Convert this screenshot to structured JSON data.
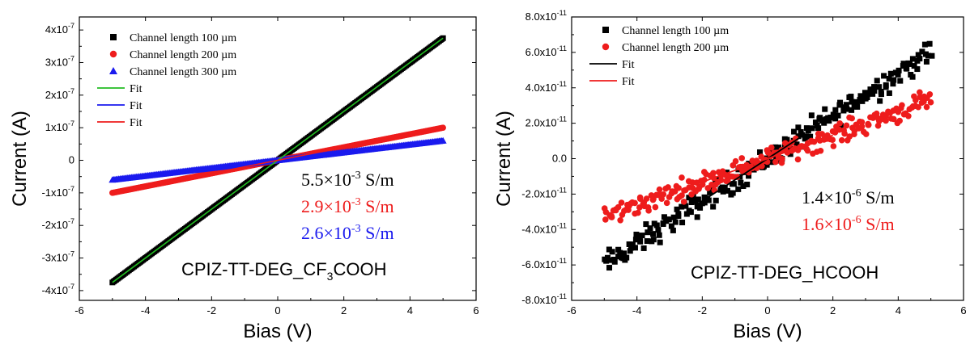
{
  "chart_data": [
    {
      "type": "scatter",
      "xlabel": "Bias (V)",
      "ylabel": "Current (A)",
      "xlim": [
        -6,
        6
      ],
      "ylim": [
        -4.3e-07,
        4.4e-07
      ],
      "x_ticks": [
        "-6",
        "-4",
        "-2",
        "0",
        "2",
        "4",
        "6"
      ],
      "y_ticks": [
        {
          "base": "-4x10",
          "exp": "-7",
          "value": -4e-07
        },
        {
          "base": "-3x10",
          "exp": "-7",
          "value": -3e-07
        },
        {
          "base": "-2x10",
          "exp": "-7",
          "value": -2e-07
        },
        {
          "base": "-1x10",
          "exp": "-7",
          "value": -1e-07
        },
        {
          "base": "0",
          "exp": "",
          "value": 0
        },
        {
          "base": "1x10",
          "exp": "-7",
          "value": 1e-07
        },
        {
          "base": "2x10",
          "exp": "-7",
          "value": 2e-07
        },
        {
          "base": "3x10",
          "exp": "-7",
          "value": 3e-07
        },
        {
          "base": "4x10",
          "exp": "-7",
          "value": 4e-07
        }
      ],
      "grid": false,
      "legend_position": "top-left",
      "series": [
        {
          "name": "Channel length 100 µm",
          "marker": "square",
          "color": "#000000",
          "x_range": [
            -5,
            5
          ],
          "slope": 7.5e-08
        },
        {
          "name": "Channel length 200 µm",
          "marker": "circle",
          "color": "#ee1c1c",
          "x_range": [
            -5,
            5
          ],
          "slope": 2e-08
        },
        {
          "name": "Channel length 300 µm",
          "marker": "triangle",
          "color": "#1a1aee",
          "x_range": [
            -5,
            5
          ],
          "slope": 1.2e-08
        }
      ],
      "fits": [
        {
          "name": "Fit",
          "color": "#22bb22",
          "slope": 7.5e-08
        },
        {
          "name": "Fit",
          "color": "#1a1aee",
          "slope": 1.2e-08
        },
        {
          "name": "Fit",
          "color": "#ee1c1c",
          "slope": 2e-08
        }
      ],
      "conductivities": [
        {
          "base": "5.5×10",
          "exp": "-3",
          "unit": " S/m",
          "color": "#000000"
        },
        {
          "base": "2.9×10",
          "exp": "-3",
          "unit": " S/m",
          "color": "#ee1c1c"
        },
        {
          "base": "2.6×10",
          "exp": "-3",
          "unit": " S/m",
          "color": "#1a1aee"
        }
      ],
      "sample_label": {
        "pre": "CPIZ-TT-DEG_CF",
        "sub": "3",
        "post": "COOH"
      }
    },
    {
      "type": "scatter",
      "xlabel": "Bias (V)",
      "ylabel": "Current (A)",
      "xlim": [
        -6,
        6
      ],
      "ylim": [
        -8e-11,
        8e-11
      ],
      "x_ticks": [
        "-6",
        "-4",
        "-2",
        "0",
        "2",
        "4",
        "6"
      ],
      "y_ticks": [
        {
          "base": "-8.0x10",
          "exp": "-11",
          "value": -8e-11
        },
        {
          "base": "-6.0x10",
          "exp": "-11",
          "value": -6e-11
        },
        {
          "base": "-4.0x10",
          "exp": "-11",
          "value": -4e-11
        },
        {
          "base": "-2.0x10",
          "exp": "-11",
          "value": -2e-11
        },
        {
          "base": "0.0",
          "exp": "",
          "value": 0
        },
        {
          "base": "2.0x10",
          "exp": "-11",
          "value": 2e-11
        },
        {
          "base": "4.0x10",
          "exp": "-11",
          "value": 4e-11
        },
        {
          "base": "6.0x10",
          "exp": "-11",
          "value": 6e-11
        },
        {
          "base": "8.0x10",
          "exp": "-11",
          "value": 8e-11
        }
      ],
      "grid": false,
      "legend_position": "top-left",
      "series": [
        {
          "name": "Channel length 100 µm",
          "marker": "square",
          "color": "#000000",
          "x_range": [
            -5,
            5
          ],
          "slope": 1.2e-11,
          "noise": 6e-12
        },
        {
          "name": "Channel length 200 µm",
          "marker": "circle",
          "color": "#ee1c1c",
          "x_range": [
            -5,
            5
          ],
          "slope": 6.6e-12,
          "noise": 5e-12
        }
      ],
      "fits": [
        {
          "name": "Fit",
          "color": "#000000",
          "slope": 1.2e-11,
          "x_range": [
            -2.2,
            1.0
          ]
        },
        {
          "name": "Fit",
          "color": "#ee1c1c",
          "slope": 6.6e-12,
          "x_range": [
            -2.0,
            2.0
          ]
        }
      ],
      "conductivities": [
        {
          "base": "1.4×10",
          "exp": "-6",
          "unit": " S/m",
          "color": "#000000"
        },
        {
          "base": "1.6×10",
          "exp": "-6",
          "unit": " S/m",
          "color": "#ee1c1c"
        }
      ],
      "sample_label": {
        "pre": "CPIZ-TT-DEG_HCOOH",
        "sub": "",
        "post": ""
      }
    }
  ]
}
